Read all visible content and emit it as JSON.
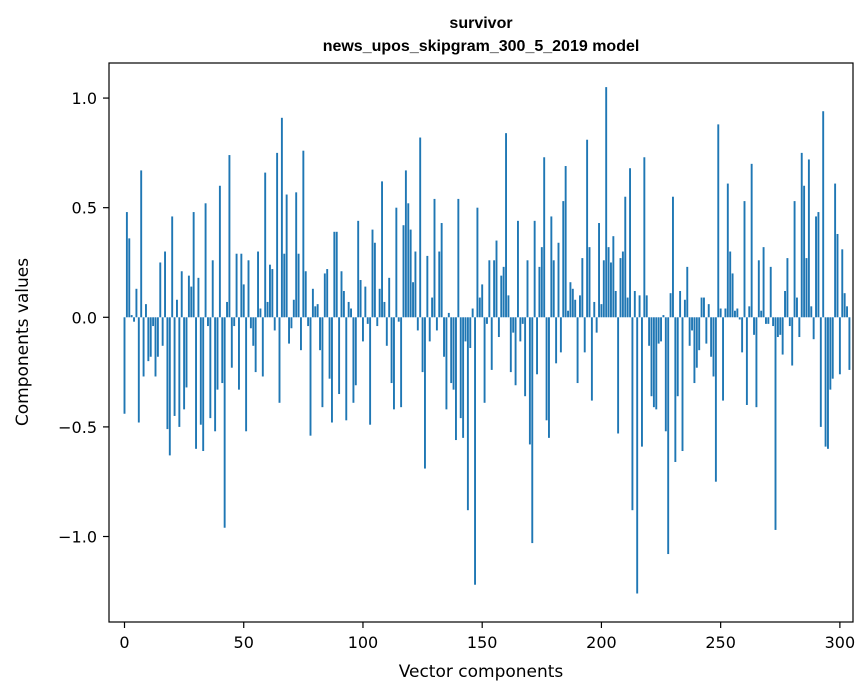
{
  "chart_data": {
    "type": "bar",
    "title": "survivor",
    "subtitle": "news_upos_skipgram_300_5_2019 model",
    "xlabel": "Vector components",
    "ylabel": "Components values",
    "xlim": [
      -6.5,
      305.5
    ],
    "ylim": [
      -1.39,
      1.16
    ],
    "x_ticks": [
      0,
      50,
      100,
      150,
      200,
      250,
      300
    ],
    "x_tick_labels": [
      "0",
      "50",
      "100",
      "150",
      "200",
      "250",
      "300"
    ],
    "y_ticks": [
      -1.0,
      -0.5,
      0.0,
      0.5,
      1.0
    ],
    "y_tick_labels": [
      "−1.0",
      "−0.5",
      "0.0",
      "0.5",
      "1.0"
    ],
    "bar_color": "#1f77b4",
    "values": [
      -0.44,
      0.48,
      0.36,
      0.01,
      -0.02,
      0.13,
      -0.48,
      0.67,
      -0.27,
      0.06,
      -0.2,
      -0.18,
      -0.04,
      -0.27,
      -0.18,
      0.25,
      -0.13,
      0.3,
      -0.51,
      -0.63,
      0.46,
      -0.45,
      0.08,
      -0.5,
      0.21,
      -0.42,
      -0.32,
      0.19,
      0.14,
      0.48,
      -0.6,
      0.18,
      -0.49,
      -0.61,
      0.52,
      -0.04,
      -0.46,
      0.26,
      -0.52,
      -0.33,
      0.6,
      -0.3,
      -0.96,
      0.07,
      0.74,
      -0.23,
      -0.04,
      0.29,
      -0.33,
      0.29,
      0.15,
      -0.52,
      0.26,
      -0.05,
      -0.13,
      -0.25,
      0.3,
      0.04,
      -0.27,
      0.66,
      0.07,
      0.24,
      0.22,
      -0.06,
      0.75,
      -0.39,
      0.91,
      0.29,
      0.56,
      -0.12,
      -0.05,
      0.08,
      0.57,
      0.29,
      -0.15,
      0.76,
      0.21,
      -0.04,
      -0.54,
      0.13,
      0.05,
      0.06,
      -0.15,
      -0.41,
      0.2,
      0.22,
      -0.28,
      -0.48,
      0.39,
      0.39,
      -0.35,
      0.21,
      0.12,
      -0.47,
      0.07,
      0.04,
      -0.39,
      -0.31,
      0.44,
      0.17,
      -0.11,
      0.14,
      -0.03,
      -0.49,
      0.4,
      0.34,
      -0.04,
      0.13,
      0.62,
      0.07,
      -0.13,
      0.18,
      -0.3,
      -0.42,
      0.5,
      -0.02,
      -0.41,
      0.42,
      0.67,
      0.52,
      0.4,
      0.16,
      0.3,
      -0.06,
      0.82,
      -0.25,
      -0.69,
      0.28,
      -0.11,
      0.09,
      0.54,
      -0.06,
      0.3,
      0.43,
      -0.18,
      -0.42,
      0.02,
      -0.3,
      -0.33,
      -0.56,
      0.54,
      -0.46,
      -0.55,
      -0.11,
      -0.88,
      -0.14,
      0.04,
      -1.22,
      0.5,
      0.09,
      0.15,
      -0.39,
      -0.03,
      0.26,
      -0.24,
      0.26,
      0.35,
      -0.09,
      0.19,
      0.23,
      0.84,
      0.1,
      -0.25,
      -0.07,
      -0.31,
      0.44,
      -0.11,
      -0.03,
      -0.36,
      0.26,
      -0.58,
      -1.03,
      0.44,
      -0.26,
      0.23,
      0.32,
      0.73,
      -0.47,
      -0.55,
      0.46,
      0.26,
      -0.21,
      0.34,
      -0.16,
      0.53,
      0.69,
      0.03,
      0.16,
      0.13,
      0.08,
      -0.3,
      0.1,
      0.27,
      -0.16,
      0.81,
      0.32,
      -0.38,
      0.07,
      -0.07,
      0.43,
      0.06,
      0.26,
      1.05,
      0.32,
      0.25,
      0.37,
      0.12,
      -0.53,
      0.27,
      0.3,
      0.55,
      0.09,
      0.68,
      -0.88,
      0.12,
      -1.26,
      0.1,
      -0.59,
      0.73,
      0.1,
      -0.13,
      -0.36,
      -0.41,
      -0.42,
      -0.12,
      -0.11,
      0.01,
      -0.52,
      -1.08,
      0.11,
      0.55,
      -0.66,
      -0.36,
      0.12,
      -0.61,
      0.08,
      0.23,
      -0.13,
      -0.06,
      -0.3,
      -0.23,
      -0.15,
      0.09,
      0.09,
      -0.12,
      0.06,
      -0.18,
      -0.27,
      -0.75,
      0.88,
      0.04,
      -0.38,
      0.04,
      0.61,
      0.3,
      0.2,
      0.03,
      0.04,
      -0.01,
      -0.16,
      0.53,
      -0.4,
      0.05,
      0.7,
      -0.08,
      -0.41,
      0.26,
      0.03,
      0.32,
      -0.03,
      -0.03,
      0.23,
      -0.04,
      -0.97,
      -0.09,
      -0.08,
      -0.17,
      0.12,
      0.27,
      -0.04,
      -0.22,
      0.53,
      0.09,
      -0.09,
      0.75,
      0.6,
      0.27,
      0.72,
      0.05,
      -0.1,
      0.46,
      0.48,
      -0.5,
      0.94,
      -0.59,
      -0.6,
      -0.33,
      -0.28,
      0.61,
      0.38,
      -0.26,
      0.31,
      0.11,
      0.05,
      -0.24
    ]
  }
}
